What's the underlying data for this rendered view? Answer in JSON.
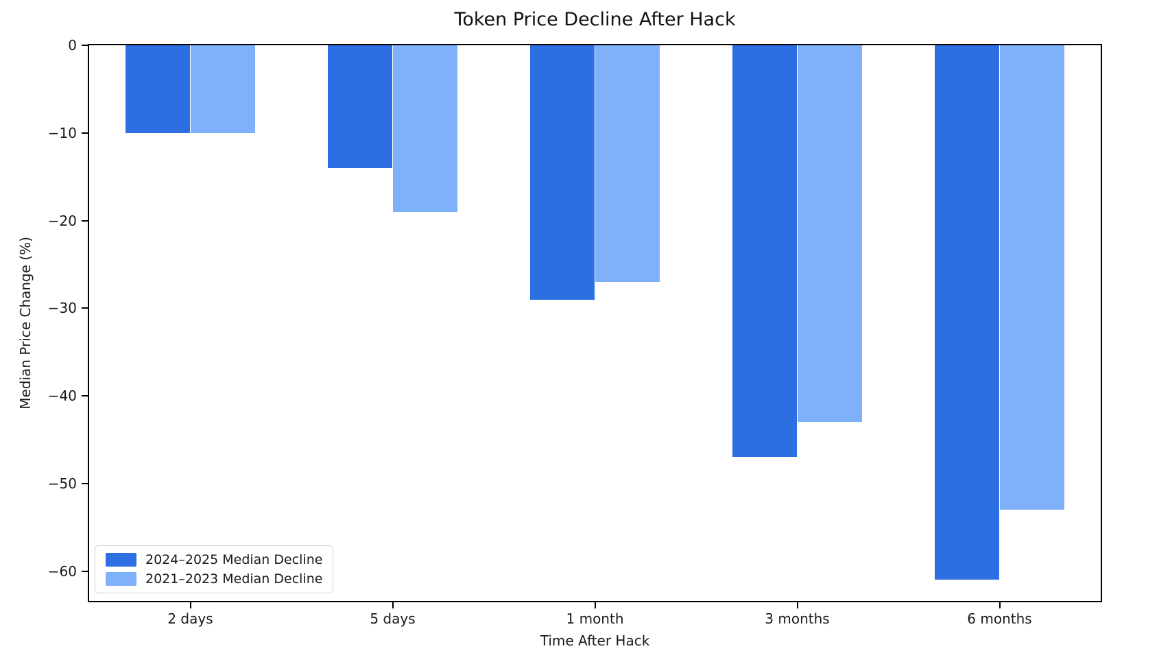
{
  "figure": {
    "background": "#ffffff",
    "text_color": "#1a1a1a"
  },
  "chart_data": {
    "type": "bar",
    "title": "Token Price Decline After Hack",
    "xlabel": "Time After Hack",
    "ylabel": "Median Price Change (%)",
    "categories": [
      "2 days",
      "5 days",
      "1 month",
      "3 months",
      "6 months"
    ],
    "series": [
      {
        "name": "2024–2025 Median Decline",
        "color": "#2d6fe3",
        "values": [
          -10,
          -14,
          -29,
          -47,
          -61
        ]
      },
      {
        "name": "2021–2023 Median Decline",
        "color": "#7fb0fa",
        "values": [
          -10,
          -19,
          -27,
          -43,
          -53
        ]
      }
    ],
    "yticks": [
      0,
      -10,
      -20,
      -30,
      -40,
      -50,
      -60
    ],
    "ylim": [
      -63.4,
      0
    ],
    "grid": false,
    "legend_position": "lower left",
    "minus_sign": "−"
  }
}
